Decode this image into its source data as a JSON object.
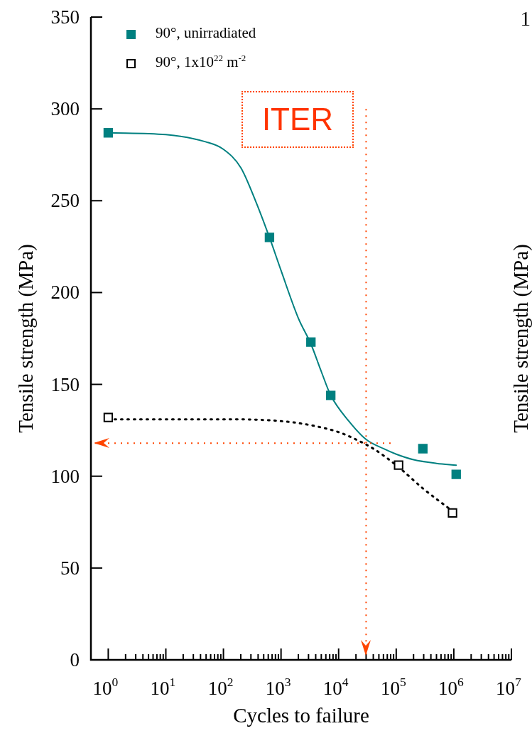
{
  "chart_data": {
    "type": "scatter",
    "xlabel": "Cycles to failure",
    "ylabel": "Tensile strength (MPa)",
    "y2label": "Tensile strength (MPa)",
    "log": "x",
    "xlim": [
      0.5,
      10000000
    ],
    "ylim": [
      0,
      350
    ],
    "xticks": [
      {
        "value": 1,
        "label": "10$^{0}$"
      },
      {
        "value": 2,
        "label": null
      },
      {
        "value": 3,
        "label": null
      },
      {
        "value": 4,
        "label": null
      },
      {
        "value": 5,
        "label": null
      },
      {
        "value": 6,
        "label": null
      },
      {
        "value": 7,
        "label": null
      },
      {
        "value": 8,
        "label": null
      },
      {
        "value": 9,
        "label": null
      },
      {
        "value": 10,
        "label": "10$^{1}$"
      },
      {
        "value": 20,
        "label": null
      },
      {
        "value": 30,
        "label": null
      },
      {
        "value": 40,
        "label": null
      },
      {
        "value": 50,
        "label": null
      },
      {
        "value": 60,
        "label": null
      },
      {
        "value": 70,
        "label": null
      },
      {
        "value": 80,
        "label": null
      },
      {
        "value": 90,
        "label": null
      },
      {
        "value": 100,
        "label": "10$^{2}$"
      },
      {
        "value": 200,
        "label": null
      },
      {
        "value": 300,
        "label": null
      },
      {
        "value": 400,
        "label": null
      },
      {
        "value": 500,
        "label": null
      },
      {
        "value": 600,
        "label": null
      },
      {
        "value": 700,
        "label": null
      },
      {
        "value": 800,
        "label": null
      },
      {
        "value": 900,
        "label": null
      },
      {
        "value": 1000,
        "label": "10$^{3}$"
      },
      {
        "value": 2000,
        "label": null
      },
      {
        "value": 3000,
        "label": null
      },
      {
        "value": 4000,
        "label": null
      },
      {
        "value": 5000,
        "label": null
      },
      {
        "value": 6000,
        "label": null
      },
      {
        "value": 7000,
        "label": null
      },
      {
        "value": 8000,
        "label": null
      },
      {
        "value": 9000,
        "label": null
      },
      {
        "value": 10000,
        "label": "10$^{4}$"
      },
      {
        "value": 20000,
        "label": null
      },
      {
        "value": 30000,
        "label": null
      },
      {
        "value": 40000,
        "label": null
      },
      {
        "value": 50000,
        "label": null
      },
      {
        "value": 60000,
        "label": null
      },
      {
        "value": 70000,
        "label": null
      },
      {
        "value": 80000,
        "label": null
      },
      {
        "value": 90000,
        "label": null
      },
      {
        "value": 100000,
        "label": "10$^{5}$"
      },
      {
        "value": 200000,
        "label": null
      },
      {
        "value": 300000,
        "label": null
      },
      {
        "value": 400000,
        "label": null
      },
      {
        "value": 500000,
        "label": null
      },
      {
        "value": 600000,
        "label": null
      },
      {
        "value": 700000,
        "label": null
      },
      {
        "value": 800000,
        "label": null
      },
      {
        "value": 900000,
        "label": null
      },
      {
        "value": 1000000,
        "label": "10$^{6}$"
      },
      {
        "value": 2000000,
        "label": null
      },
      {
        "value": 3000000,
        "label": null
      },
      {
        "value": 4000000,
        "label": null
      },
      {
        "value": 5000000,
        "label": null
      },
      {
        "value": 6000000,
        "label": null
      },
      {
        "value": 7000000,
        "label": null
      },
      {
        "value": 8000000,
        "label": null
      },
      {
        "value": 9000000,
        "label": null
      },
      {
        "value": 10000000,
        "label": "10$^{7}$"
      }
    ],
    "yticks": [
      0,
      50,
      100,
      150,
      200,
      250,
      300,
      350
    ],
    "grid": false,
    "legend": "top left",
    "series": [
      {
        "name": "90°, unirradiated",
        "marker": "square",
        "color": "#008080",
        "x": [
          1,
          630,
          3300,
          7300,
          290000,
          1100000
        ],
        "values": [
          287,
          230,
          173,
          144,
          115,
          101
        ]
      },
      {
        "name": "90°, 1x10$^{22}$ m$^{-2}$",
        "marker": "square",
        "color": "#000000",
        "x": [
          1,
          110000,
          950000
        ],
        "values": [
          132,
          106,
          80
        ]
      },
      {
        "type": "line",
        "marker": "none",
        "line_style": "solid",
        "color": "#008080",
        "x": [
          1,
          10,
          50,
          100,
          200,
          360,
          630,
          1000,
          2000,
          3300,
          5000,
          7300,
          15000,
          30000,
          60000,
          100000,
          200000,
          500000,
          1100000
        ],
        "values": [
          287,
          286,
          282,
          278,
          268,
          250,
          230,
          212,
          186,
          172,
          157,
          144,
          130,
          120,
          115,
          112,
          109,
          107,
          106
        ]
      },
      {
        "type": "line",
        "marker": "none",
        "line_style": "dotted",
        "color": "#000000",
        "x": [
          1,
          100,
          1000,
          3000,
          10000,
          20000,
          40000,
          100000,
          300000,
          950000
        ],
        "values": [
          131,
          131,
          130,
          128,
          124,
          120,
          115,
          106,
          93,
          81
        ]
      }
    ],
    "ref_lines": [
      {
        "axis": "x",
        "value": 30000,
        "color": "#ff4500",
        "line_style": "dotted"
      },
      {
        "axis": "y",
        "value": 118,
        "color": "#ff4500",
        "line_style": "dotted"
      }
    ],
    "annotations": [
      "ITER",
      "1"
    ]
  }
}
